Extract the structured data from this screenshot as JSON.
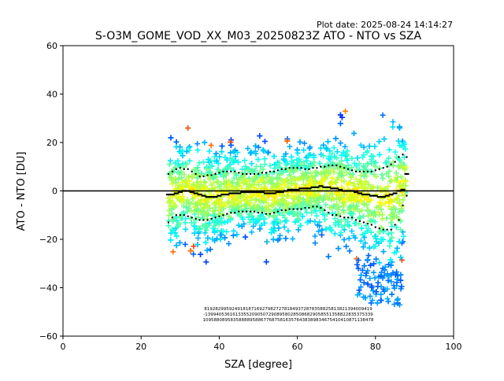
{
  "chart_data": {
    "type": "scatter",
    "plot_date": "Plot date: 2025-08-24 14:14:27",
    "title": "S-O3M_GOME_VOD_XX_M03_20250823Z ATO - NTO vs SZA",
    "xlabel": "SZA [degree]",
    "ylabel": "ATO - NTO [DU]",
    "xlim": [
      0,
      100
    ],
    "ylim": [
      -60,
      60
    ],
    "xticks": [
      "0",
      "20",
      "40",
      "60",
      "80",
      "100"
    ],
    "yticks": [
      "60",
      "40",
      "20",
      "0",
      "−20",
      "−40",
      "−60"
    ],
    "x_tick_values": [
      0,
      20,
      40,
      60,
      80,
      100
    ],
    "y_tick_values": [
      60,
      40,
      20,
      0,
      -20,
      -40,
      -60
    ],
    "reference_line_y": 0,
    "marker": "+",
    "colormap": "jet",
    "grid": false,
    "legend": "none",
    "bin_edges_sza": [
      27,
      28,
      29,
      30,
      31,
      32,
      33,
      34,
      35,
      36,
      37,
      38,
      39,
      40,
      41,
      42,
      43,
      44,
      45,
      46,
      47,
      48,
      49,
      50,
      51,
      52,
      53,
      54,
      55,
      56,
      57,
      58,
      59,
      60,
      61,
      62,
      63,
      64,
      65,
      66,
      67,
      68,
      69,
      70,
      71,
      72,
      73,
      74,
      75,
      76,
      77,
      78,
      79,
      80,
      81,
      82,
      83,
      84,
      85,
      86,
      87,
      88
    ],
    "mean": [
      -1.5,
      -1.5,
      -1,
      -0.5,
      0,
      0,
      -0.5,
      -1,
      -1.5,
      -2,
      -2.5,
      -2.5,
      -2.5,
      -2,
      -1.5,
      -1.5,
      -1,
      -1,
      -1,
      -0.5,
      -0.5,
      -0.5,
      -0.5,
      -0.5,
      -0.5,
      -1,
      -1,
      -1,
      -0.5,
      -0.5,
      0,
      0.5,
      0.5,
      0.5,
      1,
      1,
      1,
      1.5,
      1.5,
      2,
      1.5,
      1.5,
      1,
      1,
      0.5,
      0,
      0,
      0,
      -0.5,
      -1,
      -1.5,
      -1.5,
      -2,
      -2,
      -2.5,
      -2.5,
      -2,
      -1.5,
      -1,
      0,
      0.5,
      7
    ],
    "upper": [
      7,
      8,
      9,
      9.5,
      9,
      9,
      8,
      7,
      6,
      6,
      6.5,
      6.5,
      7,
      7.5,
      8,
      8,
      8,
      8,
      7.5,
      7,
      7,
      7,
      7,
      7,
      7.5,
      7.5,
      8,
      8,
      8.5,
      9,
      9,
      9.5,
      9.5,
      9.5,
      9.5,
      9,
      9,
      9.5,
      9.5,
      10,
      10,
      10.5,
      10.5,
      10.5,
      10,
      9.5,
      9,
      8.5,
      8,
      8,
      8,
      8,
      8,
      8.5,
      9,
      9.5,
      10,
      11,
      12,
      14,
      15,
      14
    ],
    "lower": [
      -13,
      -11,
      -10,
      -10,
      -10,
      -10.5,
      -11,
      -11.5,
      -12,
      -12,
      -12,
      -11.5,
      -11,
      -10.5,
      -10,
      -9.5,
      -9,
      -9,
      -8.5,
      -8.5,
      -8.5,
      -8.5,
      -8.5,
      -9,
      -9,
      -9.5,
      -9.5,
      -9,
      -8.5,
      -8,
      -8,
      -7.5,
      -7.5,
      -7.5,
      -7.5,
      -7,
      -7,
      -6.5,
      -6.5,
      -7,
      -8,
      -9,
      -10,
      -10,
      -10.5,
      -11,
      -11,
      -11,
      -12,
      -12.5,
      -13,
      -13.5,
      -14,
      -15,
      -15.5,
      -16,
      -16,
      -16,
      -14,
      -12,
      -6,
      -2
    ],
    "bin_counts_row1": "8192829959249181871692798272781849372878358825813821394009419",
    "bin_counts_row2": "-1399405361613355209050729089580285086829058551358822835375339",
    "bin_counts_row3": "10958808958358888958867768758163576438389834675410410871138478"
  }
}
